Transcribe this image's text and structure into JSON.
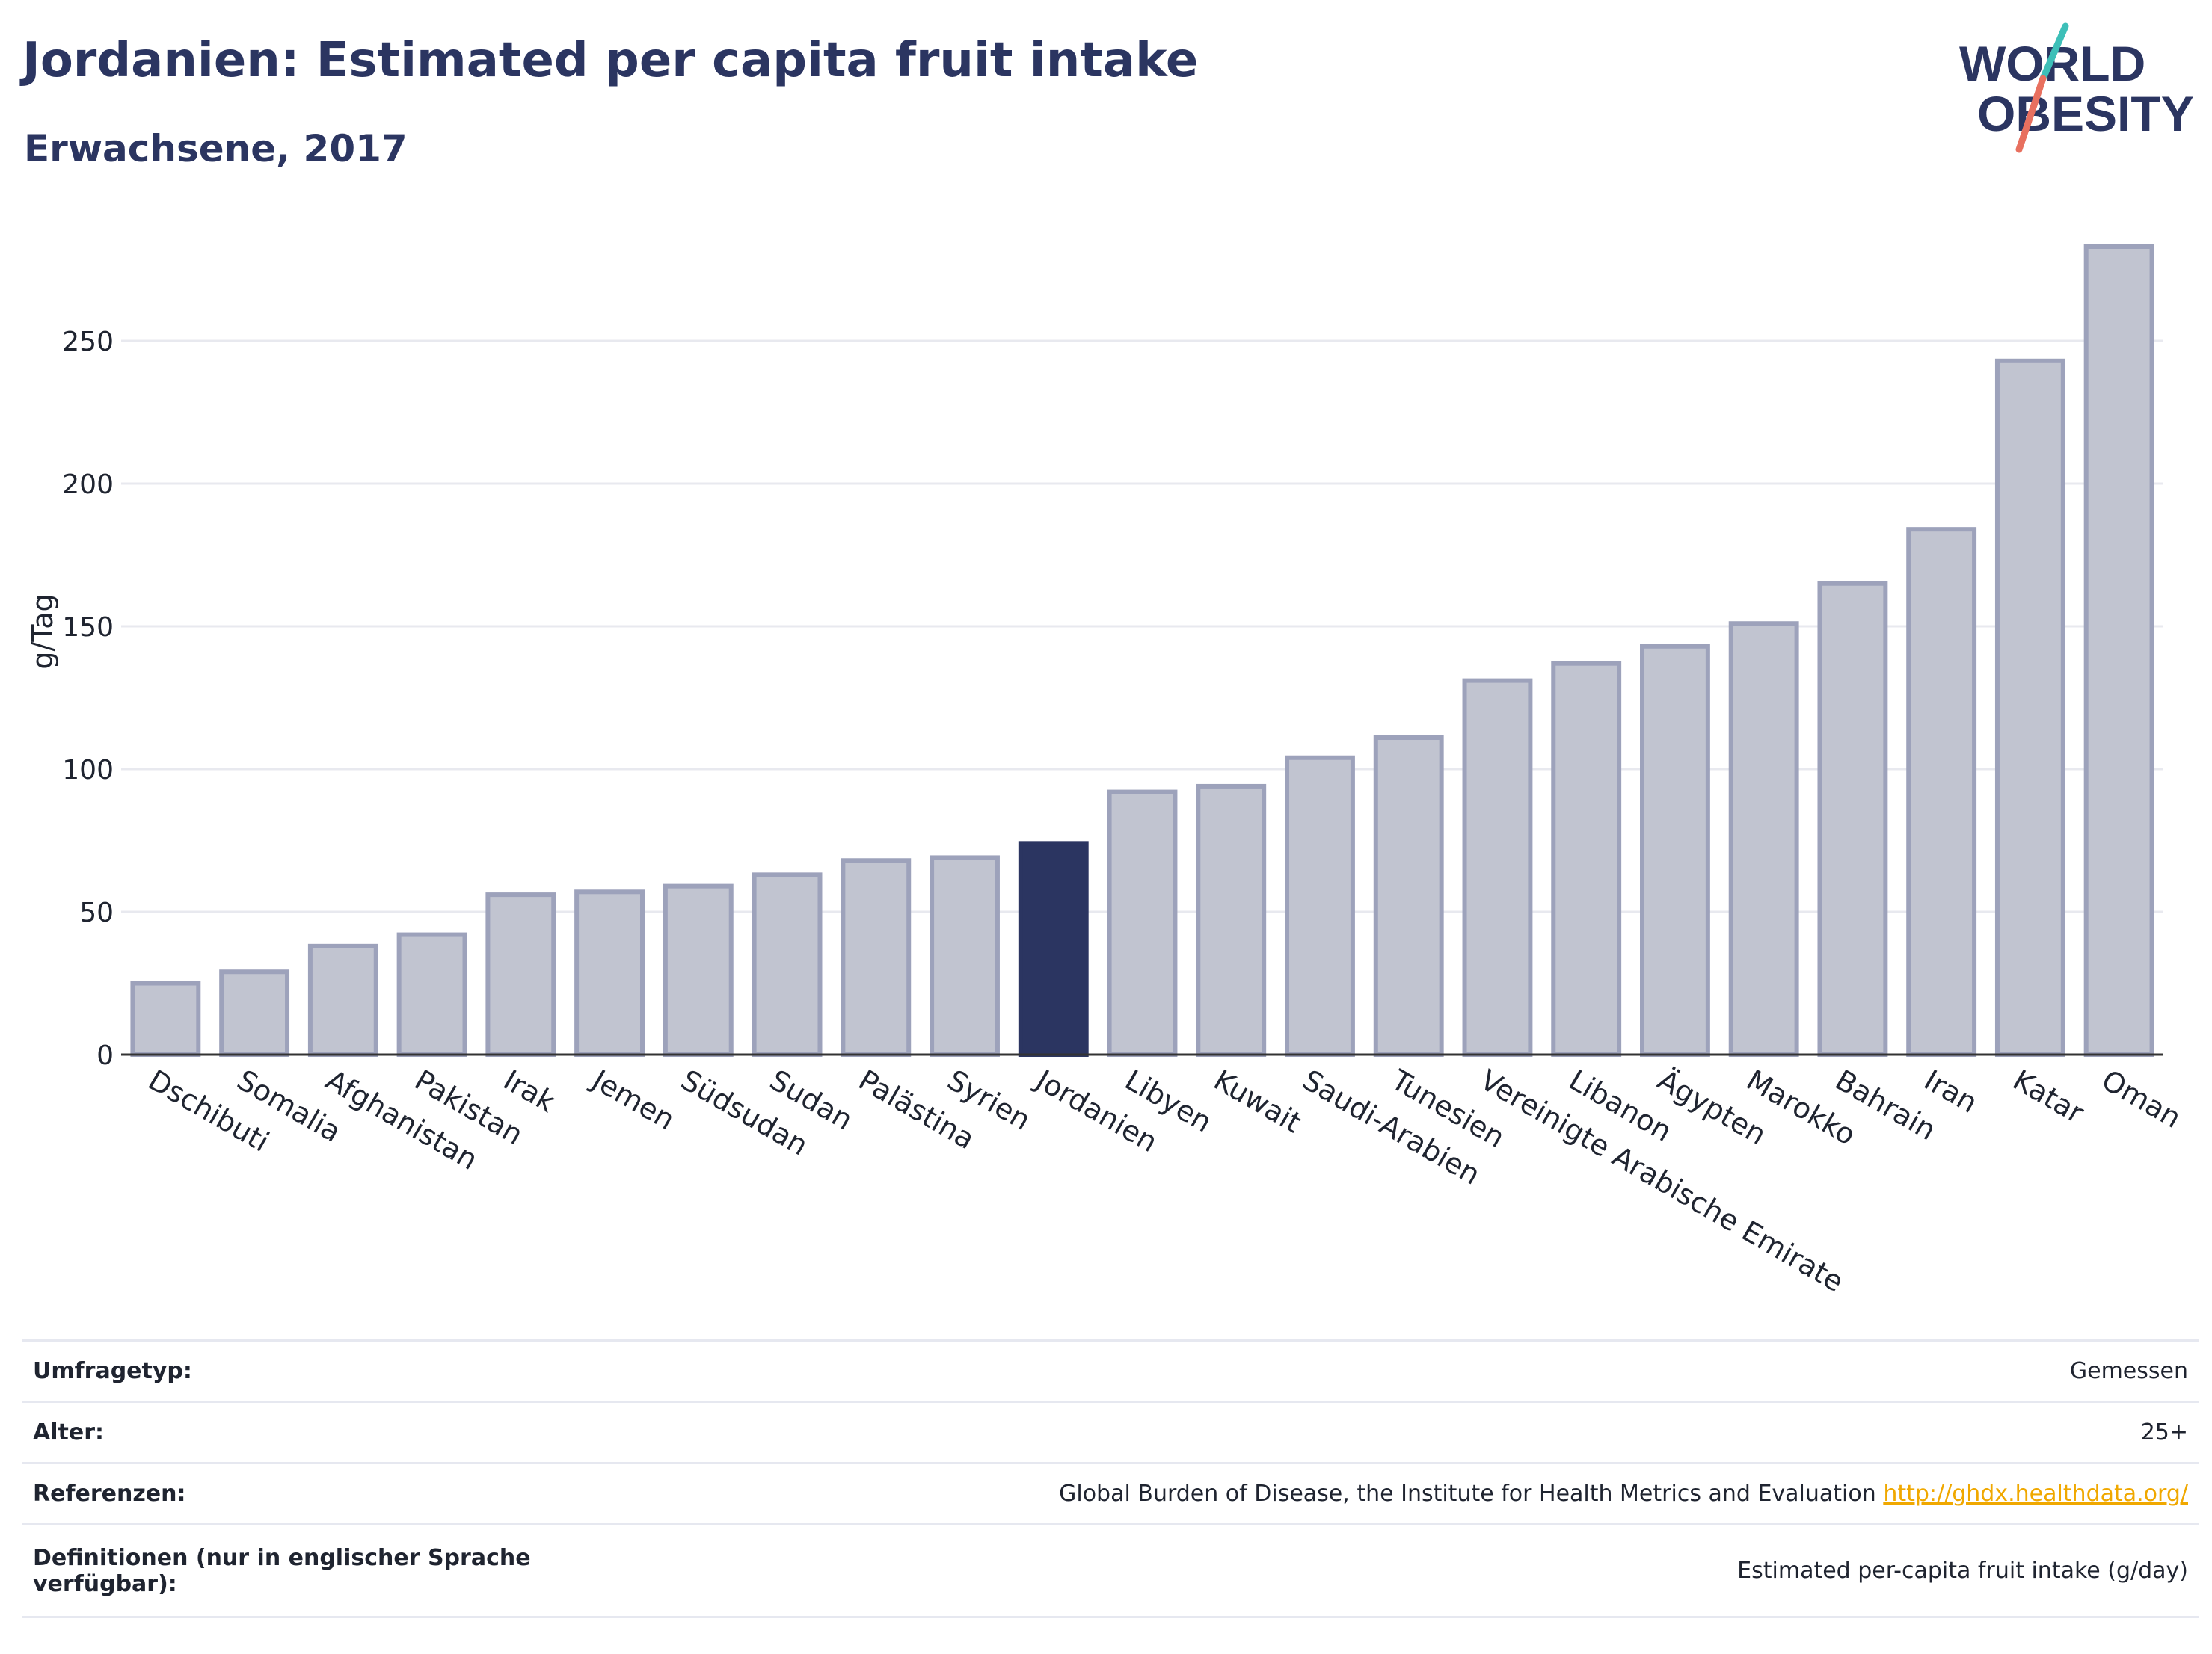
{
  "header": {
    "title": "Jordanien: Estimated per capita fruit intake",
    "subtitle": "Erwachsene, 2017"
  },
  "logo": {
    "line1": "WORLD",
    "line2": "OBESITY",
    "colors": {
      "text": "#2b3561",
      "slash_teal": "#3dbfb8",
      "slash_coral": "#e8705f"
    }
  },
  "colors": {
    "bar_fill": "#c1c4d0",
    "bar_stroke": "#9da2bb",
    "highlight_fill": "#2b3561",
    "grid": "#e8e9ef",
    "axis": "#333333"
  },
  "chart_data": {
    "type": "bar",
    "ylabel": "g/Tag",
    "ylim": [
      0,
      285
    ],
    "yticks": [
      0,
      50,
      100,
      150,
      200,
      250
    ],
    "grid": true,
    "highlight": "Jordanien",
    "categories": [
      "Dschibuti",
      "Somalia",
      "Afghanistan",
      "Pakistan",
      "Irak",
      "Jemen",
      "Südsudan",
      "Sudan",
      "Palästina",
      "Syrien",
      "Jordanien",
      "Libyen",
      "Kuwait",
      "Saudi-Arabien",
      "Tunesien",
      "Vereinigte Arabische Emirate",
      "Libanon",
      "Ägypten",
      "Marokko",
      "Bahrain",
      "Iran",
      "Katar",
      "Oman"
    ],
    "values": [
      25,
      29,
      38,
      42,
      56,
      57,
      59,
      63,
      68,
      69,
      74,
      92,
      94,
      104,
      111,
      131,
      137,
      143,
      151,
      165,
      184,
      243,
      283
    ]
  },
  "info": [
    {
      "key": "Umfragetyp:",
      "value": "Gemessen"
    },
    {
      "key": "Alter:",
      "value": "25+"
    },
    {
      "key": "Referenzen:",
      "value": "Global Burden of Disease, the Institute for Health Metrics and Evaluation",
      "link": "http://ghdx.healthdata.org/"
    },
    {
      "key": "Definitionen (nur in englischer Sprache verfügbar):",
      "value": "Estimated per-capita fruit intake (g/day)"
    }
  ]
}
